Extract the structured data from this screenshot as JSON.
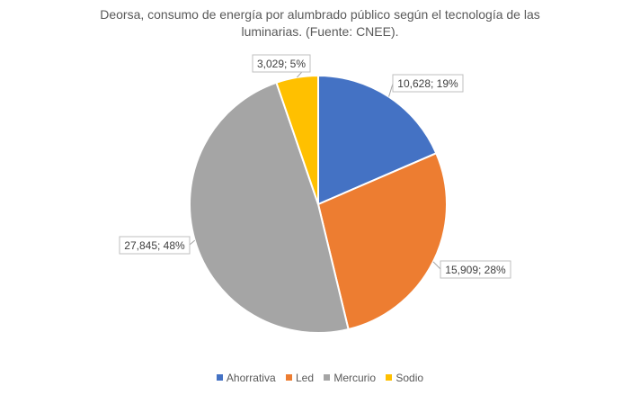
{
  "chart_data": {
    "type": "pie",
    "title_lines": [
      "Deorsa, consumo de energía por alumbrado público según el tecnología de las",
      "luminarias. (Fuente: CNEE)."
    ],
    "categories": [
      "Ahorrativa",
      "Led",
      "Mercurio",
      "Sodio"
    ],
    "values": [
      10628,
      15909,
      27845,
      3029
    ],
    "data_labels": [
      "10,628; 19%",
      "15,909; 28%",
      "27,845; 48%",
      "3,029; 5%"
    ],
    "colors": [
      "#4472C4",
      "#ED7D31",
      "#A5A5A5",
      "#FFC000"
    ],
    "legend_position": "bottom"
  }
}
